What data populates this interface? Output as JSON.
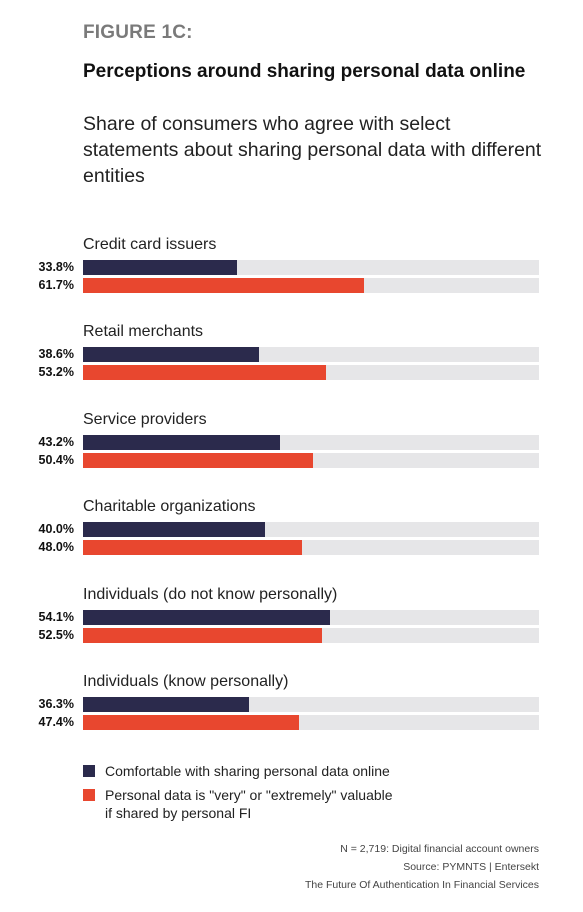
{
  "header": {
    "figure_label": "FIGURE 1C:",
    "title": "Perceptions around sharing personal data online",
    "subtitle": "Share of consumers who agree with select statements about sharing personal data with different entities"
  },
  "chart_data": {
    "type": "bar",
    "orientation": "horizontal",
    "categories": [
      "Credit card issuers",
      "Retail merchants",
      "Service providers",
      "Charitable organizations",
      "Individuals (do not know personally)",
      "Individuals (know personally)"
    ],
    "series": [
      {
        "name": "Comfortable with sharing personal data online",
        "color": "#2b2a4c",
        "values": [
          33.8,
          38.6,
          43.2,
          40.0,
          54.1,
          36.3
        ],
        "labels": [
          "33.8%",
          "38.6%",
          "43.2%",
          "40.0%",
          "54.1%",
          "36.3%"
        ]
      },
      {
        "name": "Personal data is \"very\" or \"extremely\" valuable\nif shared by personal FI",
        "color": "#e8472f",
        "values": [
          61.7,
          53.2,
          50.4,
          48.0,
          52.5,
          47.4
        ],
        "labels": [
          "61.7%",
          "53.2%",
          "50.4%",
          "48.0%",
          "52.5%",
          "47.4%"
        ]
      }
    ],
    "xlim": [
      0,
      100
    ],
    "track_color": "#e6e6e8",
    "legend_position": "bottom-left"
  },
  "footer": {
    "n_note": "N = 2,719: Digital financial account owners",
    "source": "Source: PYMNTS  |  Entersekt",
    "report": "The Future Of Authentication In Financial Services"
  }
}
